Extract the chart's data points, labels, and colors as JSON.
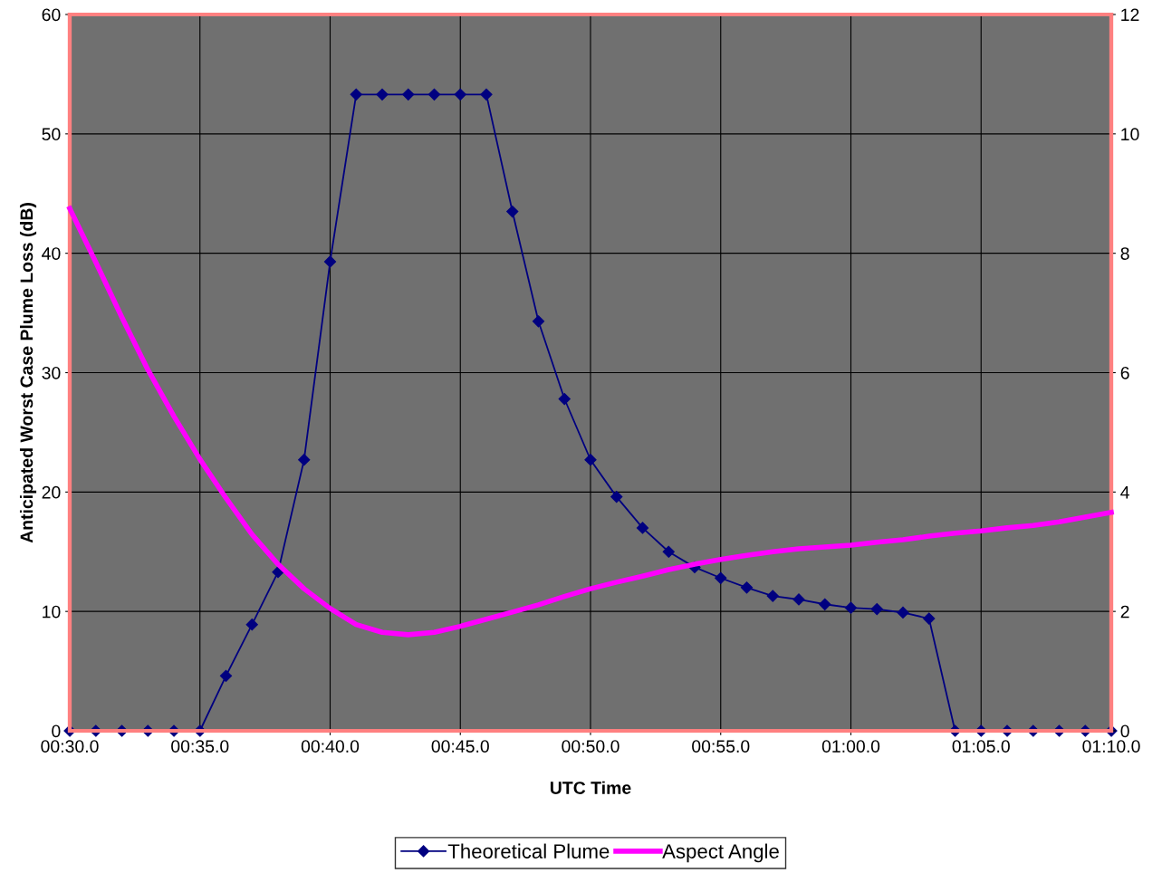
{
  "chart_data": {
    "type": "line",
    "xlabel": "UTC Time",
    "ylabel": "Anticipated Worst Case Plume Loss (dB)",
    "categories": [
      "00:30.0",
      null,
      null,
      null,
      null,
      "00:35.0",
      null,
      null,
      null,
      null,
      "00:40.0",
      null,
      null,
      null,
      null,
      "00:45.0",
      null,
      null,
      null,
      null,
      "00:50.0",
      null,
      null,
      null,
      null,
      "00:55.0",
      null,
      null,
      null,
      null,
      "01:00.0",
      null,
      null,
      null,
      null,
      "01:05.0",
      null,
      null,
      null,
      null,
      "01:10.0"
    ],
    "series": [
      {
        "name": "Theoretical Plume",
        "color": "#000080",
        "marker": "diamond",
        "values": [
          0,
          0,
          0,
          0,
          0,
          0,
          4.6,
          8.9,
          13.3,
          22.7,
          39.3,
          53.3,
          53.3,
          53.3,
          53.3,
          53.3,
          53.3,
          43.5,
          34.3,
          27.8,
          22.7,
          19.6,
          17.0,
          15.0,
          13.7,
          12.8,
          12.0,
          11.3,
          11.0,
          10.6,
          10.3,
          10.2,
          9.9,
          9.4,
          0,
          0,
          0,
          0,
          0,
          0,
          0
        ]
      },
      {
        "name": "Aspect Angle",
        "color": "#ff00ff",
        "marker": "none",
        "axis": "y2",
        "values": [
          8.75,
          7.85,
          6.93,
          6.05,
          5.27,
          4.55,
          3.9,
          3.29,
          2.79,
          2.38,
          2.05,
          1.78,
          1.65,
          1.61,
          1.65,
          1.75,
          1.87,
          1.99,
          2.11,
          2.25,
          2.38,
          2.49,
          2.59,
          2.7,
          2.79,
          2.87,
          2.94,
          3.0,
          3.05,
          3.08,
          3.11,
          3.16,
          3.2,
          3.26,
          3.31,
          3.35,
          3.4,
          3.44,
          3.5,
          3.58,
          3.66
        ]
      }
    ],
    "ylim": [
      0,
      60
    ],
    "yticks": [
      0,
      10,
      20,
      30,
      40,
      50,
      60
    ],
    "y2lim": [
      0,
      12
    ],
    "y2ticks": [
      0,
      2,
      4,
      6,
      8,
      10,
      12
    ],
    "grid": true,
    "legend": "bottom"
  }
}
